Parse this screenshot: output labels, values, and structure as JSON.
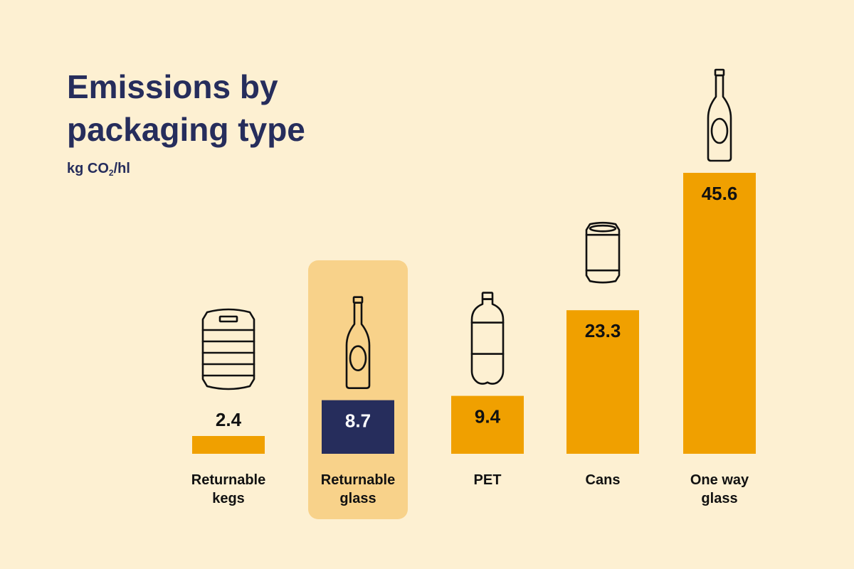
{
  "chart_data": {
    "type": "bar",
    "title_lines": [
      "Emissions by",
      "packaging type"
    ],
    "unit_text": {
      "prefix": "kg CO",
      "sub": "2",
      "suffix": "/hl"
    },
    "categories": [
      {
        "label_lines": [
          "Returnable",
          "kegs"
        ],
        "icon": "keg-icon"
      },
      {
        "label_lines": [
          "Returnable",
          "glass"
        ],
        "icon": "glass-bottle-icon"
      },
      {
        "label_lines": [
          "PET"
        ],
        "icon": "pet-bottle-icon"
      },
      {
        "label_lines": [
          "Cans"
        ],
        "icon": "can-icon"
      },
      {
        "label_lines": [
          "One way",
          "glass"
        ],
        "icon": "glass-bottle-icon"
      }
    ],
    "values": [
      2.4,
      8.7,
      9.4,
      23.3,
      45.6
    ],
    "value_labels": [
      "2.4",
      "8.7",
      "9.4",
      "23.3",
      "45.6"
    ],
    "highlighted_index": 1,
    "ylim": [
      0,
      45.6
    ],
    "grid": false,
    "legend": "none",
    "colors": {
      "background": "#fdf0d2",
      "bar": "#f0a000",
      "highlight_bar": "#262d5c",
      "highlight_panel": "#f8d28a",
      "title": "#262d5c",
      "text": "#111111"
    }
  }
}
